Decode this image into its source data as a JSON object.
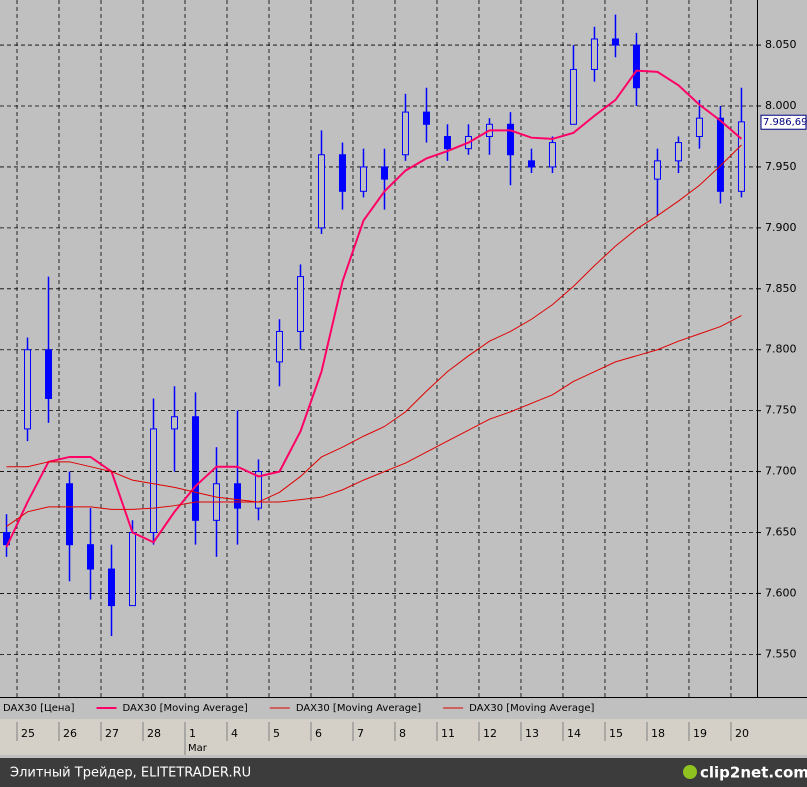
{
  "chart_data": {
    "type": "candlestick",
    "x": [
      -0.25,
      0.25,
      0.75,
      1.25,
      1.75,
      2.25,
      2.75,
      3.25,
      3.75,
      4.25,
      4.75,
      5.25,
      5.75,
      6.25,
      6.75,
      7.25,
      7.75,
      8.25,
      8.75,
      9.25,
      9.75,
      10.25,
      10.75,
      11.25,
      11.75,
      12.25,
      12.75,
      13.25,
      13.75,
      14.25,
      14.75,
      15.25,
      15.75,
      16.25,
      16.75,
      17.25
    ],
    "xlim": [
      -0.405,
      17.62
    ],
    "ylim": [
      7515,
      8087
    ],
    "yticks": [
      {
        "value": 7550,
        "label": "7.550"
      },
      {
        "value": 7600,
        "label": "7.600"
      },
      {
        "value": 7650,
        "label": "7.650"
      },
      {
        "value": 7700,
        "label": "7.700"
      },
      {
        "value": 7750,
        "label": "7.750"
      },
      {
        "value": 7800,
        "label": "7.800"
      },
      {
        "value": 7850,
        "label": "7.850"
      },
      {
        "value": 7900,
        "label": "7.900"
      },
      {
        "value": 7950,
        "label": "7.950"
      },
      {
        "value": 8000,
        "label": "8.000"
      },
      {
        "value": 8050,
        "label": "8.050"
      }
    ],
    "xticks": [
      {
        "value": 0,
        "label": "25"
      },
      {
        "value": 1,
        "label": "26"
      },
      {
        "value": 2,
        "label": "27"
      },
      {
        "value": 3,
        "label": "28"
      },
      {
        "value": 4,
        "label": "1"
      },
      {
        "value": 5,
        "label": "4"
      },
      {
        "value": 6,
        "label": "5"
      },
      {
        "value": 7,
        "label": "6"
      },
      {
        "value": 8,
        "label": "7"
      },
      {
        "value": 9,
        "label": "8"
      },
      {
        "value": 10,
        "label": "11"
      },
      {
        "value": 11,
        "label": "12"
      },
      {
        "value": 12,
        "label": "13"
      },
      {
        "value": 13,
        "label": "14"
      },
      {
        "value": 14,
        "label": "15"
      },
      {
        "value": 15,
        "label": "18"
      },
      {
        "value": 16,
        "label": "19"
      },
      {
        "value": 17,
        "label": "20"
      }
    ],
    "month_labels": [
      {
        "value": 4,
        "label": "Mar"
      }
    ],
    "grid": true,
    "last_price": {
      "value": 7986.69,
      "label": "7.986,69"
    },
    "series": [
      {
        "name": "DAX30 [Цена]",
        "color": "#0000ff",
        "open": [
          7650,
          7735,
          7800,
          7690,
          7640,
          7620,
          7590,
          7650,
          7735,
          7745,
          7660,
          7690,
          7670,
          7790,
          7815,
          7900,
          7960,
          7930,
          7950,
          7960,
          7995,
          7975,
          7965,
          7975,
          7985,
          7955,
          7950,
          7985,
          8030,
          8055,
          8050,
          7940,
          7955,
          7975,
          7990,
          7930
        ],
        "high": [
          7665,
          7810,
          7860,
          7700,
          7670,
          7640,
          7660,
          7760,
          7770,
          7765,
          7720,
          7750,
          7710,
          7825,
          7870,
          7980,
          7970,
          7965,
          7965,
          8010,
          8015,
          7985,
          7985,
          7990,
          7995,
          7965,
          7975,
          8050,
          8065,
          8075,
          8060,
          7965,
          7975,
          8005,
          8000,
          8015
        ],
        "low": [
          7630,
          7725,
          7740,
          7610,
          7595,
          7565,
          7590,
          7640,
          7700,
          7640,
          7630,
          7640,
          7660,
          7770,
          7800,
          7895,
          7915,
          7925,
          7915,
          7955,
          7970,
          7955,
          7960,
          7960,
          7935,
          7945,
          7945,
          7985,
          8020,
          8040,
          8000,
          7910,
          7945,
          7965,
          7920,
          7925
        ],
        "close": [
          7640,
          7800,
          7760,
          7640,
          7620,
          7590,
          7650,
          7735,
          7745,
          7660,
          7690,
          7670,
          7700,
          7815,
          7860,
          7960,
          7930,
          7950,
          7940,
          7995,
          7985,
          7965,
          7975,
          7985,
          7960,
          7950,
          7970,
          8030,
          8055,
          8050,
          8015,
          7955,
          7970,
          7990,
          7930,
          7987
        ]
      },
      {
        "name": "DAX30 [Moving Average]",
        "color": "#ff0066",
        "line_width": 2,
        "values": [
          7638,
          7675,
          7708,
          7712,
          7712,
          7700,
          7650,
          7642,
          7667,
          7688,
          7704,
          7704,
          7696,
          7700,
          7733,
          7782,
          7856,
          7906,
          7930,
          7947,
          7957,
          7963,
          7970,
          7980,
          7980,
          7974,
          7973,
          7978,
          7992,
          8005,
          8029,
          8028,
          8017,
          8001,
          7988,
          7973
        ]
      },
      {
        "name": "DAX30 [Moving Average]",
        "color": "#e00000",
        "line_width": 1,
        "values": [
          7704,
          7704,
          7708,
          7708,
          7704,
          7700,
          7693,
          7690,
          7687,
          7683,
          7679,
          7677,
          7675,
          7683,
          7696,
          7712,
          7720,
          7729,
          7737,
          7749,
          7766,
          7782,
          7795,
          7807,
          7815,
          7825,
          7837,
          7852,
          7869,
          7885,
          7899,
          7910,
          7922,
          7935,
          7951,
          7968
        ]
      },
      {
        "name": "DAX30 [Moving Average]",
        "color": "#e00000",
        "line_width": 1,
        "values": [
          7655,
          7667,
          7671,
          7671,
          7671,
          7669,
          7669,
          7670,
          7672,
          7675,
          7675,
          7675,
          7675,
          7675,
          7677,
          7679,
          7685,
          7693,
          7700,
          7707,
          7716,
          7725,
          7734,
          7743,
          7749,
          7756,
          7763,
          7774,
          7782,
          7790,
          7795,
          7800,
          7807,
          7813,
          7819,
          7828
        ]
      }
    ]
  },
  "footer": {
    "left": "Элитный Трейдер, ELITETRADER.RU",
    "right": "clip2net.com"
  }
}
